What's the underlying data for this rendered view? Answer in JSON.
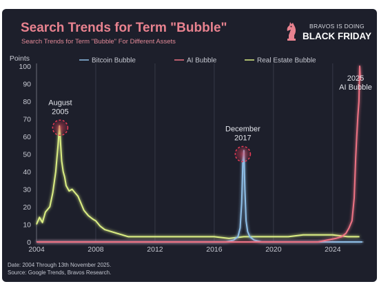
{
  "header": {
    "title": "Search Trends for Term \"Bubble\"",
    "subtitle": "Search Trends for Term \"Bubble\" For Different Assets"
  },
  "brand": {
    "line1": "BRAVOS IS DOING",
    "line2": "BLACK FRIDAY",
    "logo_icon": "knight-chess-icon"
  },
  "footer": {
    "date_note": "Date: 2004 Through 13th November 2025.",
    "source": "Source: Google Trends, Bravos Research."
  },
  "colors": {
    "background": "#1d1f2b",
    "title": "#e8828f",
    "bitcoin": "#8fbfe8",
    "ai": "#ee7384",
    "real_estate": "#dcef84",
    "grid": "#3d404e",
    "highlight": "#e23a55"
  },
  "chart_data": {
    "type": "line",
    "title": "Search Trends for Term \"Bubble\"",
    "subtitle": "Search Trends for Term \"Bubble\" For Different Assets",
    "ylabel": "Points",
    "xlabel": "",
    "xlim": [
      2004,
      2026.1
    ],
    "ylim": [
      0,
      100
    ],
    "xticks": [
      2004,
      2008,
      2012,
      2016,
      2020,
      2024
    ],
    "yticks": [
      0,
      10,
      20,
      30,
      40,
      50,
      60,
      70,
      80,
      90,
      100
    ],
    "grid": "vertical",
    "legend": "top",
    "series": [
      {
        "name": "Bitcoin Bubble",
        "color": "#8fbfe8",
        "x": [
          2004,
          2015.0,
          2016.8,
          2017.3,
          2017.6,
          2017.75,
          2017.85,
          2017.93,
          2018.0,
          2018.07,
          2018.15,
          2018.25,
          2018.4,
          2018.7,
          2019.2,
          2026
        ],
        "y": [
          0,
          0,
          0,
          1,
          3,
          8,
          22,
          45,
          52,
          30,
          12,
          6,
          3,
          1,
          0,
          0
        ]
      },
      {
        "name": "AI Bubble",
        "color": "#ee7384",
        "x": [
          2004,
          2023.0,
          2023.6,
          2024.2,
          2024.6,
          2024.9,
          2025.1,
          2025.3,
          2025.45,
          2025.55,
          2025.62,
          2025.7,
          2025.77,
          2025.82,
          2025.87
        ],
        "y": [
          0,
          0,
          1,
          2,
          3,
          5,
          8,
          12,
          25,
          48,
          60,
          72,
          80,
          100,
          92
        ]
      },
      {
        "name": "Real Estate Bubble",
        "color": "#dcef84",
        "x": [
          2004,
          2004.2,
          2004.4,
          2004.6,
          2004.9,
          2005.1,
          2005.3,
          2005.45,
          2005.55,
          2005.62,
          2005.7,
          2005.8,
          2005.9,
          2006.0,
          2006.2,
          2006.4,
          2006.6,
          2006.8,
          2007.0,
          2007.2,
          2007.5,
          2007.8,
          2008.0,
          2008.3,
          2008.6,
          2009.0,
          2009.4,
          2009.8,
          2010.2,
          2011.0,
          2012.0,
          2013.0,
          2014.0,
          2015.0,
          2016.0,
          2017.0,
          2018.0,
          2019.0,
          2020.0,
          2021.0,
          2022.0,
          2023.0,
          2024.0,
          2025.0,
          2025.8
        ],
        "y": [
          10,
          14,
          11,
          17,
          20,
          28,
          40,
          55,
          66,
          57,
          46,
          40,
          37,
          32,
          29,
          30,
          28,
          26,
          22,
          18,
          15,
          13,
          12,
          9,
          7,
          6,
          5,
          4,
          3,
          3,
          3,
          3,
          3,
          3,
          3,
          2,
          3,
          3,
          3,
          3,
          4,
          4,
          4,
          3,
          3
        ]
      }
    ],
    "annotations": [
      {
        "label_line1": "August",
        "label_line2": "2005",
        "x": 2005.6,
        "y": 65,
        "series": "Real Estate Bubble"
      },
      {
        "label_line1": "December",
        "label_line2": "2017",
        "x": 2017.93,
        "y": 50,
        "series": "Bitcoin Bubble"
      },
      {
        "label_line1": "2025",
        "label_line2": "AI Bubble",
        "x": 2025.82,
        "y": 100,
        "series": "AI Bubble"
      }
    ]
  }
}
